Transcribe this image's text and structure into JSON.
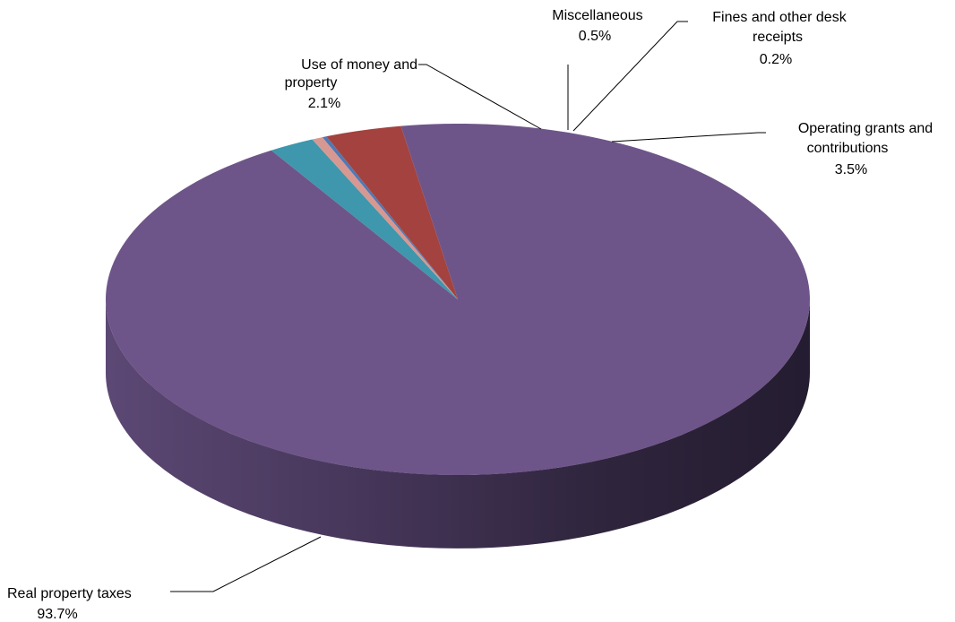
{
  "chart_data": {
    "type": "pie",
    "style": "3d",
    "title": "",
    "slices": [
      {
        "label_lines": [
          "Real property taxes"
        ],
        "label": "Real property taxes",
        "value": 93.7,
        "value_label": "93.7%",
        "color": "#6E5589"
      },
      {
        "label_lines": [
          "Use of money and",
          "property"
        ],
        "label": "Use of money and property",
        "value": 2.1,
        "value_label": "2.1%",
        "color": "#3E97AC"
      },
      {
        "label_lines": [
          "Miscellaneous"
        ],
        "label": "Miscellaneous",
        "value": 0.5,
        "value_label": "0.5%",
        "color": "#D79892"
      },
      {
        "label_lines": [
          "Fines and other desk",
          "receipts"
        ],
        "label": "Fines and other desk receipts",
        "value": 0.2,
        "value_label": "0.2%",
        "color": "#4F79B6"
      },
      {
        "label_lines": [
          "Operating grants and",
          "contributions"
        ],
        "label": "Operating grants and contributions",
        "value": 3.5,
        "value_label": "3.5%",
        "color": "#A3423E"
      }
    ]
  }
}
